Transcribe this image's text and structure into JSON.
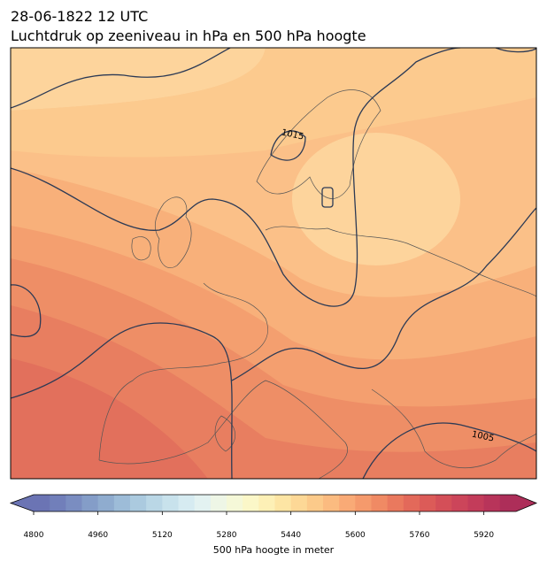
{
  "header": {
    "title": "28-06-1822 12 UTC",
    "subtitle": "Luchtdruk op zeeniveau in hPa en 500 hPa hoogte"
  },
  "map": {
    "contour_labels": [
      "1015",
      "1005"
    ]
  },
  "colorbar": {
    "label": "500 hPa hoogte in meter",
    "lim": [
      4800,
      6000
    ],
    "ticks": [
      4800,
      4960,
      5120,
      5280,
      5440,
      5600,
      5760,
      5920
    ],
    "extend": "both",
    "colors": [
      "#6b74b4",
      "#717fba",
      "#7a8dc1",
      "#849dc8",
      "#8faccf",
      "#9dbcd8",
      "#abcadf",
      "#bad7e6",
      "#c8e2ec",
      "#d6ebf1",
      "#e3f2f1",
      "#eef6e6",
      "#f5f8d8",
      "#fbf7c8",
      "#fdf0b6",
      "#fde5a4",
      "#fdd896",
      "#fcca8a",
      "#fbbb80",
      "#f9aa76",
      "#f59a6c",
      "#f08a64",
      "#ea795e",
      "#e3695a",
      "#dc5b58",
      "#d44f58",
      "#cc455a",
      "#c33c5a",
      "#b8345a",
      "#ad2e59"
    ]
  }
}
